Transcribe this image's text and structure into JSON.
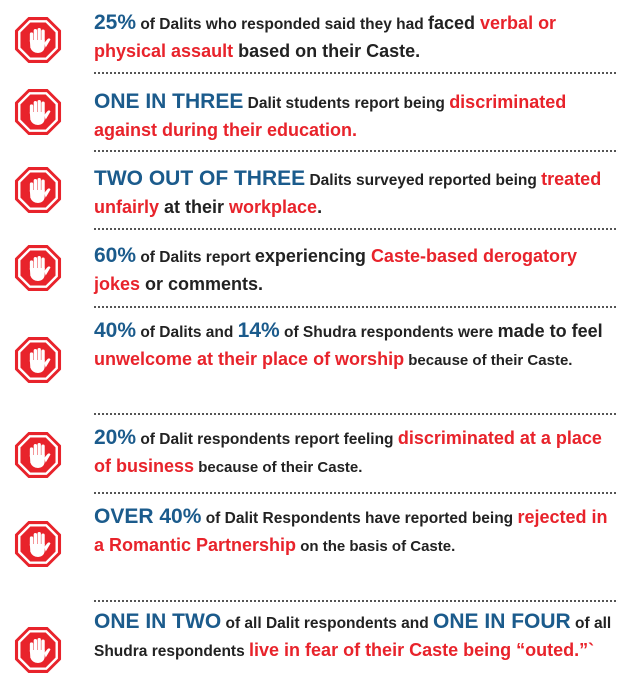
{
  "stats": [
    {
      "segments": [
        {
          "text": "25%",
          "style": "blue"
        },
        {
          "text": " of Dalits who responded said they had ",
          "style": "plain"
        },
        {
          "text": "faced ",
          "style": "mid"
        },
        {
          "text": "verbal or physical assault",
          "style": "red"
        },
        {
          "text": " based on their Caste.",
          "style": "mid"
        }
      ]
    },
    {
      "segments": [
        {
          "text": "ONE IN THREE",
          "style": "blue"
        },
        {
          "text": " Dalit students report being ",
          "style": "plain"
        },
        {
          "text": "discriminated against during their education.",
          "style": "red"
        }
      ]
    },
    {
      "segments": [
        {
          "text": "TWO OUT OF THREE",
          "style": "blue"
        },
        {
          "text": " Dalits surveyed reported being ",
          "style": "plain"
        },
        {
          "text": "treated unfairly",
          "style": "red"
        },
        {
          "text": " at their ",
          "style": "mid"
        },
        {
          "text": "workplace",
          "style": "red"
        },
        {
          "text": ".",
          "style": "mid"
        }
      ]
    },
    {
      "segments": [
        {
          "text": "60%",
          "style": "blue"
        },
        {
          "text": " of Dalits report ",
          "style": "plain"
        },
        {
          "text": "experiencing ",
          "style": "mid"
        },
        {
          "text": "Caste-based derogatory jokes",
          "style": "red"
        },
        {
          "text": " or comments.",
          "style": "mid"
        }
      ]
    },
    {
      "segments": [
        {
          "text": "40%",
          "style": "blue"
        },
        {
          "text": " of Dalits and ",
          "style": "plain"
        },
        {
          "text": "14%",
          "style": "blue"
        },
        {
          "text": " of Shudra respondents were ",
          "style": "plain"
        },
        {
          "text": "made to feel ",
          "style": "mid"
        },
        {
          "text": "unwelcome at their place of worship",
          "style": "red"
        },
        {
          "text": " because of their Caste.",
          "style": "plain"
        }
      ]
    },
    {
      "segments": [
        {
          "text": "20%",
          "style": "blue"
        },
        {
          "text": " of Dalit respondents report feeling ",
          "style": "plain"
        },
        {
          "text": "discriminated at a place of business",
          "style": "red"
        },
        {
          "text": " because  of their Caste.",
          "style": "plain"
        }
      ]
    },
    {
      "segments": [
        {
          "text": "OVER 40%",
          "style": "blue"
        },
        {
          "text": " of Dalit Respondents have reported being ",
          "style": "plain"
        },
        {
          "text": "rejected in a Romantic Partnership",
          "style": "red"
        },
        {
          "text": " on the basis of Caste.",
          "style": "plain"
        }
      ]
    },
    {
      "segments": [
        {
          "text": "ONE IN TWO",
          "style": "blue"
        },
        {
          "text": " of all Dalit respondents and ",
          "style": "plain"
        },
        {
          "text": "ONE IN FOUR",
          "style": "blue"
        },
        {
          "text": " of all Shudra respondents ",
          "style": "plain"
        },
        {
          "text": "live in fear of their Caste being “outed.”`",
          "style": "red"
        }
      ]
    }
  ],
  "icon": {
    "name": "stop-hand-icon",
    "octagon_color": "#e8232b",
    "ring_color": "#ffffff",
    "hand_color": "#ffffff"
  }
}
